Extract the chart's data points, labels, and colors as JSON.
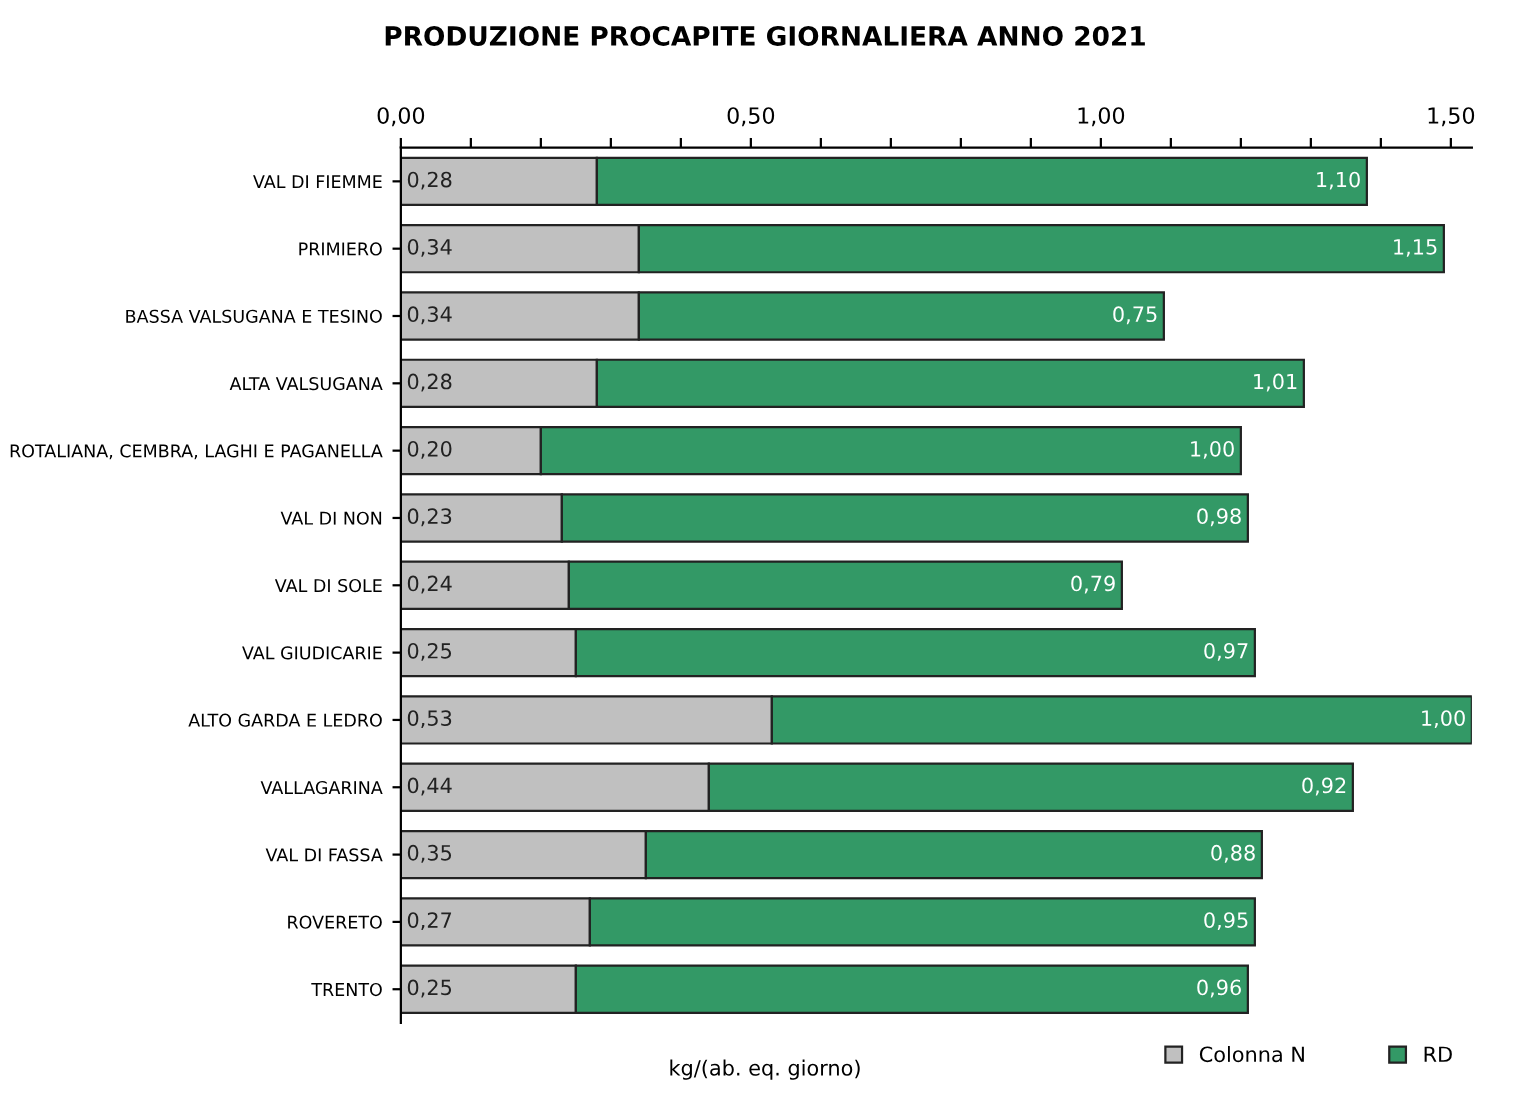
{
  "chart_data": {
    "type": "bar",
    "orientation": "horizontal",
    "stacked": true,
    "title": "PRODUZIONE PROCAPITE GIORNALIERA ANNO 2021",
    "xlabel": "kg/(ab. eq. giorno)",
    "categories": [
      "VAL DI FIEMME",
      "PRIMIERO",
      "BASSA VALSUGANA E TESINO",
      "ALTA VALSUGANA",
      "ROTALIANA, CEMBRA, LAGHI E PAGANELLA",
      "VAL DI NON",
      "VAL DI SOLE",
      "VAL GIUDICARIE",
      "ALTO GARDA E LEDRO",
      "VALLAGARINA",
      "VAL DI FASSA",
      "ROVERETO",
      "TRENTO"
    ],
    "series": [
      {
        "name": "Colonna N",
        "color": "#c0c0c0",
        "values": [
          0.28,
          0.34,
          0.34,
          0.28,
          0.2,
          0.23,
          0.24,
          0.25,
          0.53,
          0.44,
          0.35,
          0.27,
          0.25
        ],
        "value_labels": [
          "0,28",
          "0,34",
          "0,34",
          "0,28",
          "0,20",
          "0,23",
          "0,24",
          "0,25",
          "0,53",
          "0,44",
          "0,35",
          "0,27",
          "0,25"
        ]
      },
      {
        "name": "RD",
        "color": "#339966",
        "values": [
          1.1,
          1.15,
          0.75,
          1.01,
          1.0,
          0.98,
          0.79,
          0.97,
          1.0,
          0.92,
          0.88,
          0.95,
          0.96
        ],
        "value_labels": [
          "1,10",
          "1,15",
          "0,75",
          "1,01",
          "1,00",
          "0,98",
          "0,79",
          "0,97",
          "1,00",
          "0,92",
          "0,88",
          "0,95",
          "0,96"
        ]
      }
    ],
    "xlim": [
      0,
      1.53
    ],
    "xticks": [
      {
        "value": 0,
        "label": "0,00"
      },
      {
        "value": 0.1,
        "label": null
      },
      {
        "value": 0.2,
        "label": null
      },
      {
        "value": 0.3,
        "label": null
      },
      {
        "value": 0.4,
        "label": null
      },
      {
        "value": 0.5,
        "label": "0,50"
      },
      {
        "value": 0.6,
        "label": null
      },
      {
        "value": 0.7,
        "label": null
      },
      {
        "value": 0.8,
        "label": null
      },
      {
        "value": 0.9,
        "label": null
      },
      {
        "value": 1.0,
        "label": "1,00"
      },
      {
        "value": 1.1,
        "label": null
      },
      {
        "value": 1.2,
        "label": null
      },
      {
        "value": 1.3,
        "label": null
      },
      {
        "value": 1.4,
        "label": null
      },
      {
        "value": 1.5,
        "label": "1,50"
      }
    ],
    "grid": false,
    "legend": "bottom right"
  }
}
